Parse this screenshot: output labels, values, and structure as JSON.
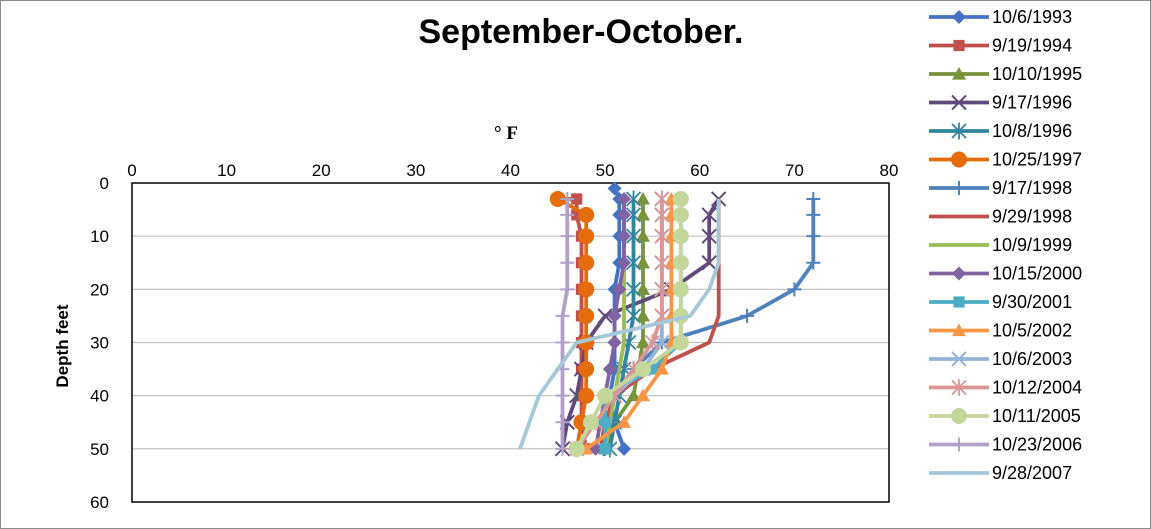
{
  "chart_data": {
    "type": "line",
    "title": "September-October.",
    "xlabel": "° F",
    "ylabel": "Depth feet",
    "xlim": [
      0,
      80
    ],
    "ylim": [
      0,
      60
    ],
    "x_ticks": [
      0,
      10,
      20,
      30,
      40,
      50,
      60,
      70,
      80
    ],
    "y_ticks": [
      0,
      10,
      20,
      30,
      40,
      50,
      60
    ],
    "y_inverted": true,
    "x_axis_position": "top",
    "grid": "horizontal",
    "legend_position": "right",
    "series": [
      {
        "name": "10/6/1993",
        "color": "#4472C4",
        "marker": "diamond",
        "points": [
          [
            51,
            1
          ],
          [
            51.5,
            3
          ],
          [
            51.5,
            6
          ],
          [
            51.5,
            10
          ],
          [
            51.5,
            15
          ],
          [
            51,
            20
          ],
          [
            51,
            25
          ],
          [
            51,
            30
          ],
          [
            51,
            35
          ],
          [
            50.5,
            40
          ],
          [
            51,
            45
          ],
          [
            52,
            50
          ]
        ]
      },
      {
        "name": "9/19/1994",
        "color": "#C0504D",
        "marker": "square",
        "points": [
          [
            45,
            3
          ],
          [
            47,
            3
          ],
          [
            47,
            6
          ],
          [
            47.5,
            10
          ],
          [
            47.5,
            15
          ],
          [
            47.5,
            20
          ],
          [
            47.5,
            25
          ],
          [
            47.5,
            30
          ],
          [
            47.5,
            35
          ],
          [
            47.5,
            40
          ],
          [
            47.5,
            45
          ],
          [
            48,
            50
          ]
        ]
      },
      {
        "name": "10/10/1995",
        "color": "#77933C",
        "marker": "triangle",
        "points": [
          [
            54,
            3
          ],
          [
            54,
            6
          ],
          [
            54,
            10
          ],
          [
            54,
            15
          ],
          [
            54,
            20
          ],
          [
            54,
            25
          ],
          [
            54,
            30
          ],
          [
            53.5,
            35
          ],
          [
            53,
            40
          ],
          [
            51,
            45
          ],
          [
            50,
            50
          ]
        ]
      },
      {
        "name": "9/17/1996",
        "color": "#604A7B",
        "marker": "x",
        "points": [
          [
            62,
            3
          ],
          [
            61,
            6
          ],
          [
            61,
            10
          ],
          [
            61,
            15
          ],
          [
            57,
            20
          ],
          [
            50,
            25
          ],
          [
            48,
            30
          ],
          [
            47.5,
            35
          ],
          [
            47,
            40
          ],
          [
            46,
            45
          ],
          [
            45.5,
            50
          ]
        ]
      },
      {
        "name": "10/8/1996",
        "color": "#31859C",
        "marker": "asterisk",
        "points": [
          [
            53,
            3
          ],
          [
            53,
            6
          ],
          [
            53,
            10
          ],
          [
            53,
            15
          ],
          [
            53,
            20
          ],
          [
            53,
            25
          ],
          [
            52.5,
            30
          ],
          [
            52,
            35
          ],
          [
            51.5,
            40
          ],
          [
            51,
            45
          ],
          [
            50.5,
            50
          ]
        ]
      },
      {
        "name": "10/25/1997",
        "color": "#E46C0A",
        "marker": "circle",
        "points": [
          [
            45,
            3
          ],
          [
            48,
            6
          ],
          [
            48,
            10
          ],
          [
            48,
            15
          ],
          [
            48,
            20
          ],
          [
            48,
            25
          ],
          [
            48,
            30
          ],
          [
            48,
            35
          ],
          [
            48,
            40
          ],
          [
            47.5,
            45
          ],
          [
            47,
            50
          ]
        ]
      },
      {
        "name": "9/17/1998",
        "color": "#4F81BD",
        "marker": "plus",
        "points": [
          [
            72,
            3
          ],
          [
            72,
            6
          ],
          [
            72,
            10
          ],
          [
            72,
            15
          ],
          [
            70,
            20
          ],
          [
            65,
            25
          ],
          [
            56,
            30
          ],
          [
            53,
            35
          ],
          [
            51,
            40
          ],
          [
            50.5,
            45
          ],
          [
            50,
            50
          ]
        ]
      },
      {
        "name": "9/29/1998",
        "color": "#C0504D",
        "marker": "line",
        "points": [
          [
            62,
            3
          ],
          [
            62,
            6
          ],
          [
            62,
            10
          ],
          [
            62,
            15
          ],
          [
            62,
            20
          ],
          [
            62,
            25
          ],
          [
            61,
            30
          ],
          [
            55,
            35
          ],
          [
            51,
            40
          ],
          [
            50,
            45
          ],
          [
            49.5,
            50
          ]
        ]
      },
      {
        "name": "10/9/1999",
        "color": "#9BBB59",
        "marker": "line",
        "points": [
          [
            52,
            3
          ],
          [
            52,
            6
          ],
          [
            52,
            10
          ],
          [
            52,
            15
          ],
          [
            52,
            20
          ],
          [
            52,
            25
          ],
          [
            52,
            30
          ],
          [
            51.5,
            35
          ],
          [
            51,
            40
          ],
          [
            50.5,
            45
          ],
          [
            50,
            50
          ]
        ]
      },
      {
        "name": "10/15/2000",
        "color": "#8064A2",
        "marker": "diamond",
        "points": [
          [
            52,
            3
          ],
          [
            52,
            6
          ],
          [
            52,
            10
          ],
          [
            52,
            15
          ],
          [
            51.5,
            20
          ],
          [
            51,
            25
          ],
          [
            51,
            30
          ],
          [
            50.5,
            35
          ],
          [
            50,
            40
          ],
          [
            49.5,
            45
          ],
          [
            49,
            50
          ]
        ]
      },
      {
        "name": "9/30/2001",
        "color": "#4BACC6",
        "marker": "square",
        "points": [
          [
            58,
            3
          ],
          [
            58,
            6
          ],
          [
            58,
            10
          ],
          [
            58,
            15
          ],
          [
            58,
            20
          ],
          [
            58,
            25
          ],
          [
            58,
            30
          ],
          [
            55,
            35
          ],
          [
            50,
            40
          ],
          [
            50,
            45
          ],
          [
            50,
            50
          ]
        ]
      },
      {
        "name": "10/5/2002",
        "color": "#F79646",
        "marker": "triangle",
        "points": [
          [
            57,
            3
          ],
          [
            57,
            6
          ],
          [
            57,
            10
          ],
          [
            57,
            15
          ],
          [
            57,
            20
          ],
          [
            57,
            25
          ],
          [
            57,
            30
          ],
          [
            56,
            35
          ],
          [
            54,
            40
          ],
          [
            52,
            45
          ],
          [
            48,
            50
          ]
        ]
      },
      {
        "name": "10/6/2003",
        "color": "#95B3D7",
        "marker": "x",
        "points": [
          [
            56,
            3
          ],
          [
            56,
            6
          ],
          [
            56,
            10
          ],
          [
            56,
            15
          ],
          [
            56,
            20
          ],
          [
            56,
            25
          ],
          [
            56,
            30
          ],
          [
            54,
            35
          ],
          [
            51,
            40
          ],
          [
            49,
            45
          ],
          [
            47,
            50
          ]
        ]
      },
      {
        "name": "10/12/2004",
        "color": "#DA9694",
        "marker": "asterisk",
        "points": [
          [
            56,
            3
          ],
          [
            56,
            6
          ],
          [
            56,
            10
          ],
          [
            56,
            15
          ],
          [
            56,
            20
          ],
          [
            56,
            25
          ],
          [
            55,
            30
          ],
          [
            53,
            35
          ],
          [
            51,
            40
          ],
          [
            49,
            45
          ],
          [
            47,
            50
          ]
        ]
      },
      {
        "name": "10/11/2005",
        "color": "#C4D79B",
        "marker": "circle",
        "points": [
          [
            58,
            3
          ],
          [
            58,
            6
          ],
          [
            58,
            10
          ],
          [
            58,
            15
          ],
          [
            58,
            20
          ],
          [
            58,
            25
          ],
          [
            58,
            30
          ],
          [
            54,
            35
          ],
          [
            50,
            40
          ],
          [
            48.5,
            45
          ],
          [
            47,
            50
          ]
        ]
      },
      {
        "name": "10/23/2006",
        "color": "#B1A0C7",
        "marker": "plus",
        "points": [
          [
            46,
            3
          ],
          [
            46,
            6
          ],
          [
            46,
            10
          ],
          [
            46,
            15
          ],
          [
            46,
            20
          ],
          [
            45.5,
            25
          ],
          [
            45.5,
            30
          ],
          [
            45.5,
            35
          ],
          [
            45.5,
            40
          ],
          [
            45.5,
            45
          ],
          [
            45.5,
            50
          ]
        ]
      },
      {
        "name": "9/28/2007",
        "color": "#A5C8D8",
        "marker": "line",
        "points": [
          [
            62,
            3
          ],
          [
            62,
            6
          ],
          [
            62,
            10
          ],
          [
            62,
            15
          ],
          [
            61,
            20
          ],
          [
            59,
            25
          ],
          [
            47,
            30
          ],
          [
            45,
            35
          ],
          [
            43,
            40
          ],
          [
            42,
            45
          ],
          [
            41,
            50
          ]
        ]
      }
    ]
  }
}
